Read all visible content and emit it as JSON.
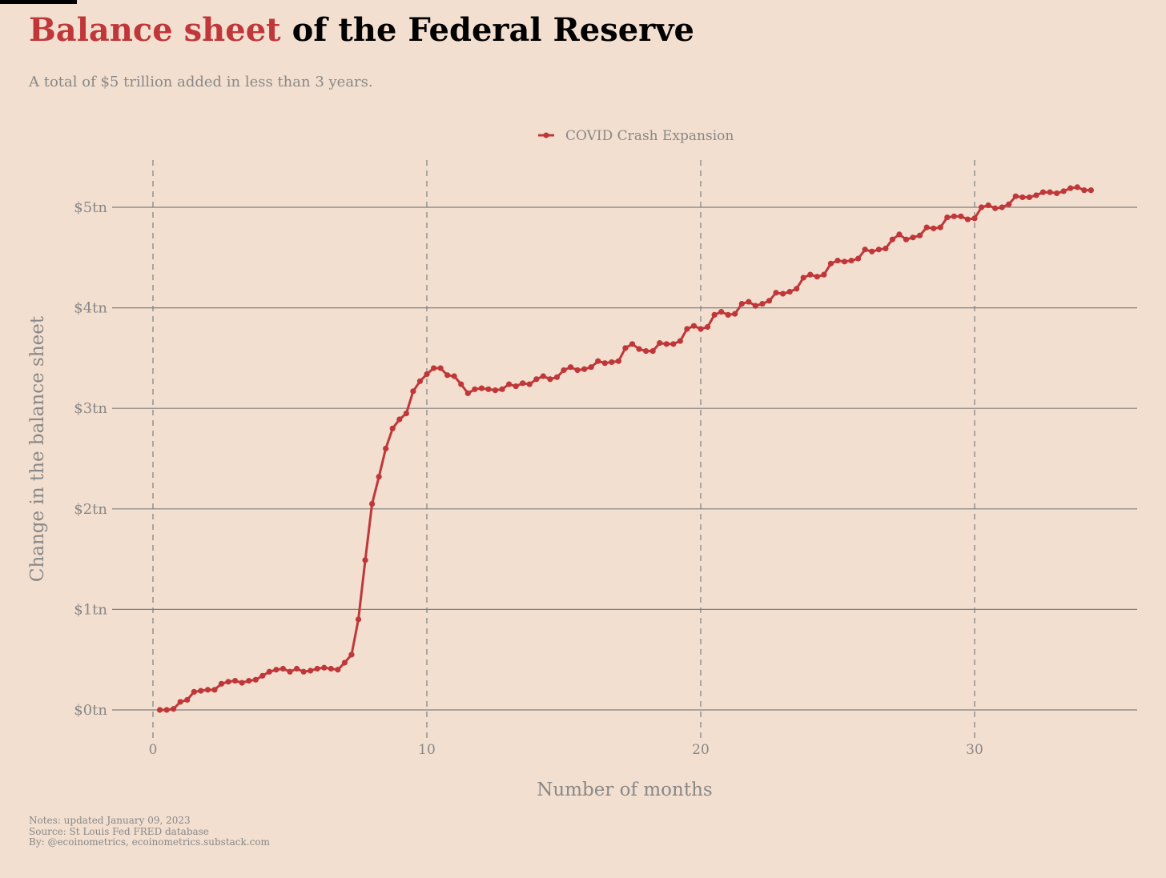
{
  "header": {
    "title_accent": "Balance sheet",
    "title_rest": " of the Federal Reserve",
    "subtitle": "A total of $5 trillion added in less than 3 years."
  },
  "footer": {
    "notes": "Notes: updated January 09, 2023",
    "source": "Source: St Louis Fed FRED database",
    "by": "By: @ecoinometrics, ecoinometrics.substack.com"
  },
  "colors": {
    "accent": "#c0373a",
    "background": "#f2dfcf",
    "grid": "#7f7f7f",
    "muted_text": "#888888"
  },
  "chart_data": {
    "type": "line",
    "xlabel": "Number of months",
    "ylabel": "Change in the balance sheet",
    "xlim": [
      0,
      36
    ],
    "ylim": [
      -0.3,
      5.45
    ],
    "x_ticks": [
      0,
      10,
      20,
      30
    ],
    "x_tick_labels": [
      "0",
      "10",
      "20",
      "30"
    ],
    "y_ticks": [
      0,
      1,
      2,
      3,
      4,
      5
    ],
    "y_tick_labels": [
      "$0tn",
      "$1tn",
      "$2tn",
      "$3tn",
      "$4tn",
      "$5tn"
    ],
    "grid": {
      "x": "dashed",
      "y": "solid"
    },
    "legend": "top-center",
    "series": [
      {
        "name": "COVID Crash Expansion",
        "color": "#c0373a",
        "x": [
          0.25,
          0.5,
          0.75,
          1,
          1.25,
          1.5,
          1.75,
          2,
          2.25,
          2.5,
          2.75,
          3,
          3.25,
          3.5,
          3.75,
          4,
          4.25,
          4.5,
          4.75,
          5,
          5.25,
          5.5,
          5.75,
          6,
          6.25,
          6.5,
          6.75,
          7,
          7.25,
          7.5,
          7.75,
          8,
          8.25,
          8.5,
          8.75,
          9,
          9.25,
          9.5,
          9.75,
          10,
          10.25,
          10.5,
          10.75,
          11,
          11.25,
          11.5,
          11.75,
          12,
          12.25,
          12.5,
          12.75,
          13,
          13.25,
          13.5,
          13.75,
          14,
          14.25,
          14.5,
          14.75,
          15,
          15.25,
          15.5,
          15.75,
          16,
          16.25,
          16.5,
          16.75,
          17,
          17.25,
          17.5,
          17.75,
          18,
          18.25,
          18.5,
          18.75,
          19,
          19.25,
          19.5,
          19.75,
          20,
          20.25,
          20.5,
          20.75,
          21,
          21.25,
          21.5,
          21.75,
          22,
          22.25,
          22.5,
          22.75,
          23,
          23.25,
          23.5,
          23.75,
          24,
          24.25,
          24.5,
          24.75,
          25,
          25.25,
          25.5,
          25.75,
          26,
          26.25,
          26.5,
          26.75,
          27,
          27.25,
          27.5,
          27.75,
          28,
          28.25,
          28.5,
          28.75,
          29,
          29.25,
          29.5,
          29.75,
          30,
          30.25,
          30.5,
          30.75,
          31,
          31.25,
          31.5,
          31.75,
          32,
          32.25,
          32.5,
          32.75,
          33,
          33.25,
          33.5,
          33.75,
          34,
          34.25
        ],
        "y": [
          0,
          0,
          0.01,
          0.08,
          0.1,
          0.18,
          0.19,
          0.2,
          0.2,
          0.26,
          0.28,
          0.29,
          0.27,
          0.29,
          0.3,
          0.34,
          0.38,
          0.4,
          0.41,
          0.38,
          0.41,
          0.38,
          0.39,
          0.41,
          0.42,
          0.41,
          0.4,
          0.47,
          0.55,
          0.9,
          1.49,
          2.05,
          2.32,
          2.6,
          2.8,
          2.89,
          2.95,
          3.17,
          3.27,
          3.34,
          3.4,
          3.4,
          3.33,
          3.32,
          3.24,
          3.15,
          3.19,
          3.2,
          3.19,
          3.18,
          3.19,
          3.24,
          3.22,
          3.25,
          3.24,
          3.29,
          3.32,
          3.29,
          3.31,
          3.38,
          3.41,
          3.38,
          3.39,
          3.41,
          3.47,
          3.45,
          3.46,
          3.47,
          3.6,
          3.64,
          3.59,
          3.57,
          3.57,
          3.65,
          3.64,
          3.64,
          3.67,
          3.79,
          3.82,
          3.79,
          3.81,
          3.93,
          3.96,
          3.93,
          3.94,
          4.04,
          4.06,
          4.02,
          4.04,
          4.07,
          4.15,
          4.14,
          4.16,
          4.19,
          4.3,
          4.33,
          4.31,
          4.33,
          4.44,
          4.47,
          4.46,
          4.47,
          4.49,
          4.58,
          4.56,
          4.58,
          4.59,
          4.68,
          4.73,
          4.68,
          4.7,
          4.72,
          4.8,
          4.79,
          4.8,
          4.9,
          4.91,
          4.91,
          4.88,
          4.89,
          5,
          5.02,
          4.99,
          5,
          5.03,
          5.11,
          5.1,
          5.1,
          5.12,
          5.15,
          5.15,
          5.14,
          5.16,
          5.19,
          5.2,
          5.17,
          5.17
        ]
      }
    ]
  }
}
